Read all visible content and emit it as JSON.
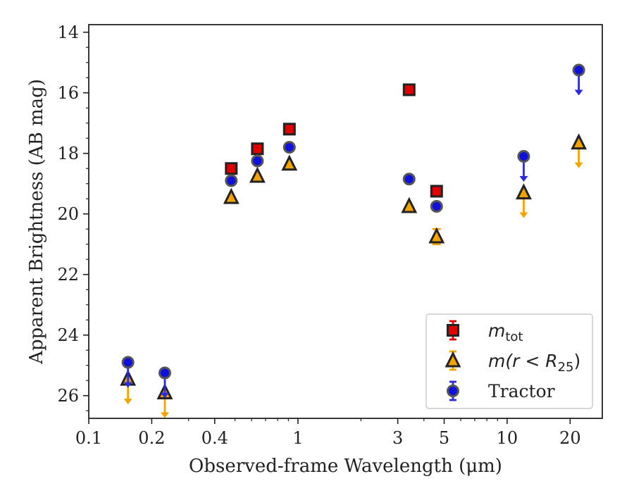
{
  "chart_data": {
    "type": "scatter",
    "xlabel": "Observed-frame Wavelength (μm)",
    "ylabel": "Apparent Brightness (AB mag)",
    "x_scale": "log",
    "xlim": [
      0.1,
      28.5
    ],
    "ylim": [
      26.75,
      13.75
    ],
    "y_inverted": true,
    "xticks": [
      {
        "value": 0.1,
        "label": "0.1"
      },
      {
        "value": 0.2,
        "label": "0.2"
      },
      {
        "value": 0.4,
        "label": "0.4"
      },
      {
        "value": 1,
        "label": "1"
      },
      {
        "value": 3,
        "label": "3"
      },
      {
        "value": 5,
        "label": "5"
      },
      {
        "value": 10,
        "label": "10"
      },
      {
        "value": 20,
        "label": "20"
      }
    ],
    "yticks": [
      {
        "value": 14,
        "label": "14"
      },
      {
        "value": 16,
        "label": "16"
      },
      {
        "value": 18,
        "label": "18"
      },
      {
        "value": 20,
        "label": "20"
      },
      {
        "value": 22,
        "label": "22"
      },
      {
        "value": 24,
        "label": "24"
      },
      {
        "value": 26,
        "label": "26"
      }
    ],
    "grid": false,
    "legend_position": "lower-right",
    "series": [
      {
        "name": "m_tot",
        "legend_label": {
          "base": "m",
          "sub": "tot"
        },
        "marker": "square",
        "face_color": "#e00000",
        "edge_color": "#222222",
        "error_color": "#e00000",
        "points": [
          {
            "x": 0.48,
            "y": 18.5
          },
          {
            "x": 0.64,
            "y": 17.85
          },
          {
            "x": 0.91,
            "y": 17.2
          },
          {
            "x": 3.4,
            "y": 15.9
          },
          {
            "x": 4.6,
            "y": 19.25
          }
        ]
      },
      {
        "name": "m(r < R25)",
        "legend_label": {
          "base": "m(r < R",
          "sub": "25",
          "tail": ")"
        },
        "marker": "triangle",
        "face_color": "#f5a300",
        "edge_color": "#222222",
        "error_color": "#f5a300",
        "points": [
          {
            "x": 0.154,
            "y": 25.45,
            "upper_limit": true
          },
          {
            "x": 0.231,
            "y": 25.9,
            "upper_limit": true
          },
          {
            "x": 0.48,
            "y": 19.45
          },
          {
            "x": 0.64,
            "y": 18.75
          },
          {
            "x": 0.91,
            "y": 18.35
          },
          {
            "x": 3.4,
            "y": 19.75
          },
          {
            "x": 4.6,
            "y": 20.75,
            "err": 0.25
          },
          {
            "x": 12.0,
            "y": 19.3,
            "upper_limit": true
          },
          {
            "x": 22.0,
            "y": 17.65,
            "upper_limit": true
          }
        ]
      },
      {
        "name": "Tractor",
        "legend_label": {
          "base": "Tractor"
        },
        "marker": "circle",
        "face_color": "#1010dd",
        "edge_color": "#555555",
        "error_color": "#2a2ae0",
        "points": [
          {
            "x": 0.154,
            "y": 24.9,
            "upper_limit": true
          },
          {
            "x": 0.231,
            "y": 25.25,
            "upper_limit": true
          },
          {
            "x": 0.48,
            "y": 18.9
          },
          {
            "x": 0.64,
            "y": 18.25
          },
          {
            "x": 0.91,
            "y": 17.8
          },
          {
            "x": 3.4,
            "y": 18.85
          },
          {
            "x": 4.6,
            "y": 19.75
          },
          {
            "x": 12.0,
            "y": 18.1,
            "upper_limit": true
          },
          {
            "x": 22.0,
            "y": 15.25,
            "upper_limit": true
          }
        ]
      }
    ]
  }
}
